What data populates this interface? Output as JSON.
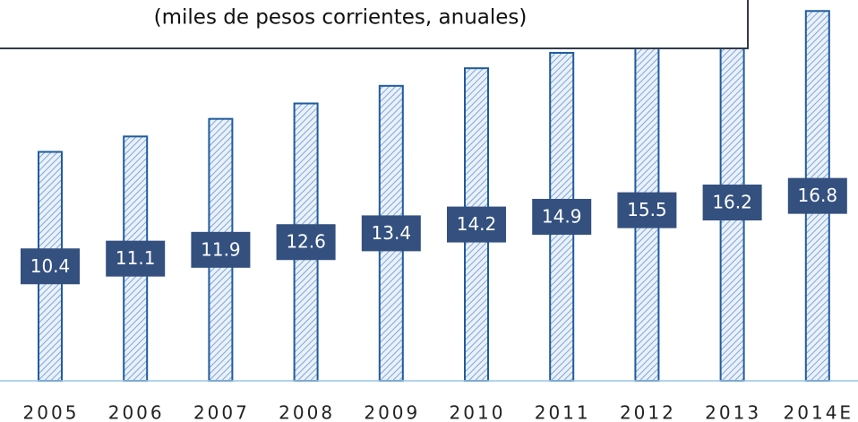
{
  "chart_data": {
    "type": "bar",
    "title": "(miles de pesos corrientes, anuales)",
    "categories": [
      "2005",
      "2006",
      "2007",
      "2008",
      "2009",
      "2010",
      "2011",
      "2012",
      "2013",
      "2014E"
    ],
    "values": [
      10.4,
      11.1,
      11.9,
      12.6,
      13.4,
      14.2,
      14.9,
      15.5,
      16.2,
      16.8
    ],
    "color": "#1f5c9e",
    "ylim": [
      0,
      17.3
    ]
  }
}
